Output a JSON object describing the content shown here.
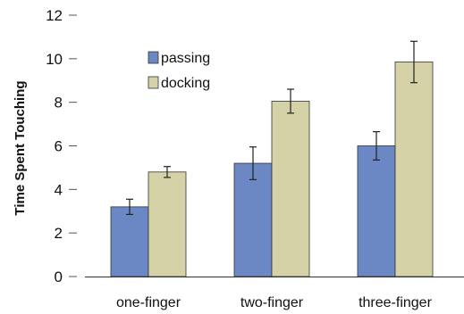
{
  "chart_data": {
    "type": "bar",
    "title": "",
    "xlabel": "",
    "ylabel": "Time Spent Touching",
    "ylim": [
      0,
      12
    ],
    "yticks": [
      0,
      2,
      4,
      6,
      8,
      10,
      12
    ],
    "grid": false,
    "legend_position": "top-left",
    "categories": [
      "one-finger",
      "two-finger",
      "three-finger"
    ],
    "series": [
      {
        "name": "passing",
        "color": "#6b88c4",
        "values": [
          3.2,
          5.2,
          6.0
        ],
        "error": [
          0.35,
          0.75,
          0.65
        ]
      },
      {
        "name": "docking",
        "color": "#d4d2a6",
        "values": [
          4.8,
          8.05,
          9.85
        ],
        "error": [
          0.25,
          0.55,
          0.95
        ]
      }
    ]
  }
}
